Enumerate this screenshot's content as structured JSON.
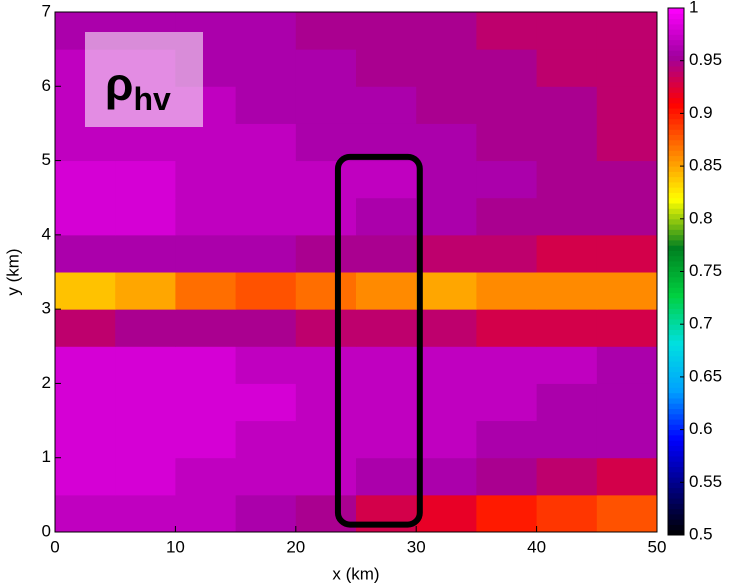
{
  "chart_data": {
    "type": "heatmap",
    "xlabel": "x (km)",
    "ylabel": "y (km)",
    "annotation": {
      "symbol": "ρ",
      "subscript": "hv"
    },
    "x": [
      2.5,
      7.5,
      12.5,
      17.5,
      22.5,
      27.5,
      32.5,
      37.5,
      42.5,
      47.5
    ],
    "y": [
      0.25,
      0.75,
      1.25,
      1.75,
      2.25,
      2.75,
      3.25,
      3.75,
      4.25,
      4.75,
      5.25,
      5.75,
      6.25,
      6.75
    ],
    "z": [
      [
        0.97,
        0.97,
        0.97,
        0.96,
        0.95,
        0.93,
        0.92,
        0.9,
        0.89,
        0.88
      ],
      [
        0.98,
        0.98,
        0.97,
        0.97,
        0.97,
        0.96,
        0.96,
        0.95,
        0.94,
        0.93
      ],
      [
        0.98,
        0.98,
        0.98,
        0.97,
        0.97,
        0.97,
        0.97,
        0.96,
        0.96,
        0.96
      ],
      [
        0.98,
        0.98,
        0.98,
        0.98,
        0.97,
        0.97,
        0.97,
        0.97,
        0.96,
        0.96
      ],
      [
        0.98,
        0.98,
        0.98,
        0.97,
        0.97,
        0.97,
        0.97,
        0.97,
        0.97,
        0.96
      ],
      [
        0.94,
        0.95,
        0.95,
        0.95,
        0.94,
        0.94,
        0.94,
        0.93,
        0.93,
        0.93
      ],
      [
        0.84,
        0.85,
        0.87,
        0.88,
        0.87,
        0.86,
        0.85,
        0.86,
        0.86,
        0.86
      ],
      [
        0.96,
        0.96,
        0.96,
        0.96,
        0.95,
        0.95,
        0.94,
        0.94,
        0.93,
        0.93
      ],
      [
        0.98,
        0.98,
        0.97,
        0.97,
        0.97,
        0.96,
        0.96,
        0.95,
        0.95,
        0.95
      ],
      [
        0.98,
        0.98,
        0.97,
        0.97,
        0.97,
        0.97,
        0.96,
        0.96,
        0.95,
        0.95
      ],
      [
        0.97,
        0.97,
        0.97,
        0.97,
        0.96,
        0.96,
        0.96,
        0.95,
        0.95,
        0.94
      ],
      [
        0.97,
        0.97,
        0.97,
        0.96,
        0.96,
        0.96,
        0.95,
        0.95,
        0.95,
        0.94
      ],
      [
        0.97,
        0.97,
        0.96,
        0.96,
        0.96,
        0.95,
        0.95,
        0.95,
        0.94,
        0.94
      ],
      [
        0.96,
        0.96,
        0.96,
        0.96,
        0.95,
        0.95,
        0.95,
        0.94,
        0.94,
        0.94
      ]
    ],
    "xlim": [
      0,
      50
    ],
    "ylim": [
      0,
      7
    ],
    "zlim": [
      0.5,
      1
    ],
    "xticks": [
      0,
      10,
      20,
      30,
      40,
      50
    ],
    "yticks": [
      0,
      1,
      2,
      3,
      4,
      5,
      6,
      7
    ],
    "zticks": [
      0.5,
      0.55,
      0.6,
      0.65,
      0.7,
      0.75,
      0.8,
      0.85,
      0.9,
      0.95,
      1
    ],
    "colormap": [
      "#000000",
      "#000080",
      "#0000ff",
      "#00a0ff",
      "#00e0e0",
      "#00d040",
      "#008020",
      "#ffff00",
      "#ff8000",
      "#ff0000",
      "#a000a0",
      "#ff00ff"
    ],
    "highlight_box": {
      "x": [
        23.5,
        30.3
      ],
      "y": [
        0.1,
        5.05
      ]
    }
  }
}
